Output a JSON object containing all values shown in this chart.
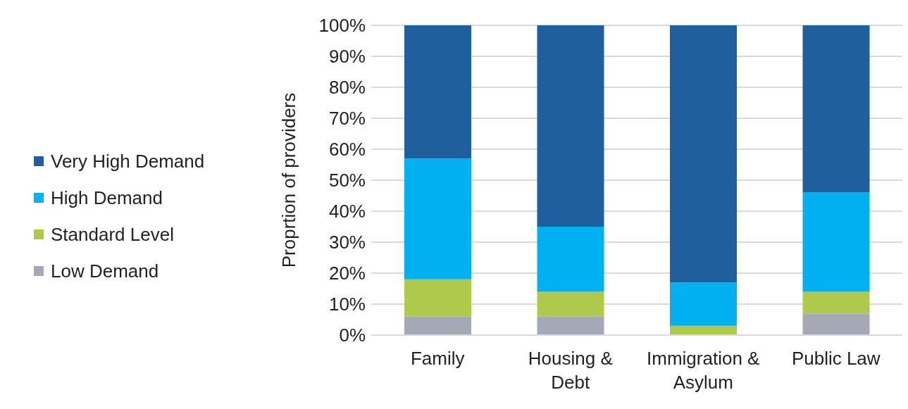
{
  "chart_data": {
    "type": "bar",
    "stacked": true,
    "ylabel": "Proprtion of providers",
    "categories": [
      "Family",
      "Housing & Debt",
      "Immigration & Asylum",
      "Public Law"
    ],
    "series": [
      {
        "name": "Low Demand",
        "color": "#a5a8b5",
        "values": [
          6,
          6,
          0,
          7
        ]
      },
      {
        "name": "Standard Level",
        "color": "#afca4b",
        "values": [
          12,
          8,
          3,
          7
        ]
      },
      {
        "name": "High Demand",
        "color": "#00b0f0",
        "values": [
          39,
          21,
          14,
          32
        ]
      },
      {
        "name": "Very High Demand",
        "color": "#1f5f9e",
        "values": [
          43,
          65,
          83,
          54
        ]
      }
    ],
    "ylim": [
      0,
      100
    ],
    "yticks": [
      {
        "value": 0,
        "label": "0%"
      },
      {
        "value": 10,
        "label": "10%"
      },
      {
        "value": 20,
        "label": "20%"
      },
      {
        "value": 30,
        "label": "30%"
      },
      {
        "value": 40,
        "label": "40%"
      },
      {
        "value": 50,
        "label": "50%"
      },
      {
        "value": 60,
        "label": "60%"
      },
      {
        "value": 70,
        "label": "70%"
      },
      {
        "value": 80,
        "label": "80%"
      },
      {
        "value": 90,
        "label": "90%"
      },
      {
        "value": 100,
        "label": "100%"
      }
    ],
    "grid": "y",
    "legend": "left"
  }
}
